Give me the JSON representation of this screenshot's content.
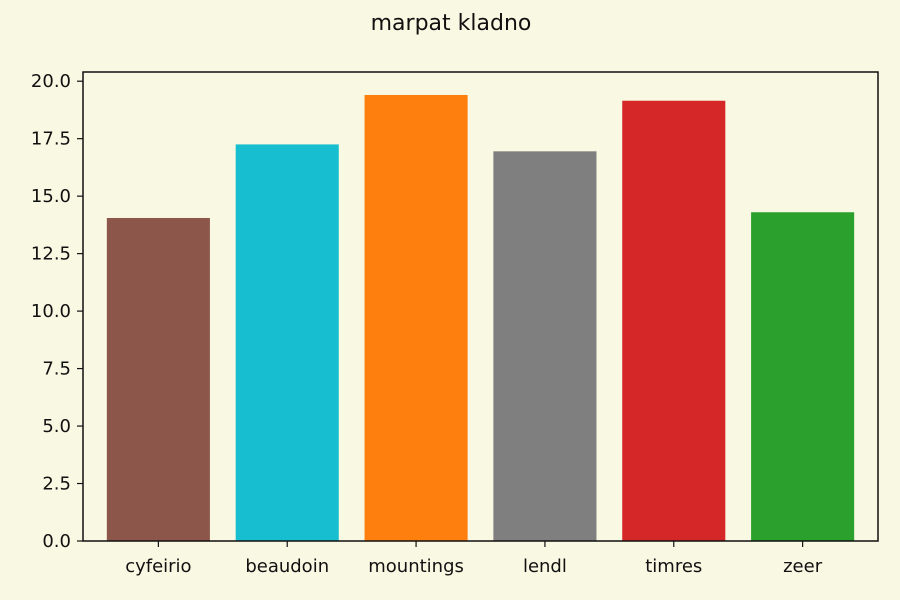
{
  "chart_data": {
    "type": "bar",
    "title": "marpat kladno",
    "xlabel": "",
    "ylabel": "",
    "categories": [
      "cyfeirio",
      "beaudoin",
      "mountings",
      "lendl",
      "timres",
      "zeer"
    ],
    "values": [
      14.05,
      17.25,
      19.4,
      16.95,
      19.15,
      14.3
    ],
    "colors": [
      "#8c564b",
      "#17becf",
      "#ff7f0e",
      "#7f7f7f",
      "#d62728",
      "#2ca02c"
    ],
    "ylim": [
      0,
      20.4
    ],
    "yticks": [
      "0.0",
      "2.5",
      "5.0",
      "7.5",
      "10.0",
      "12.5",
      "15.0",
      "17.5",
      "20.0"
    ],
    "grid": false,
    "legend": false
  },
  "style": {
    "background": "#f9f8e2"
  }
}
